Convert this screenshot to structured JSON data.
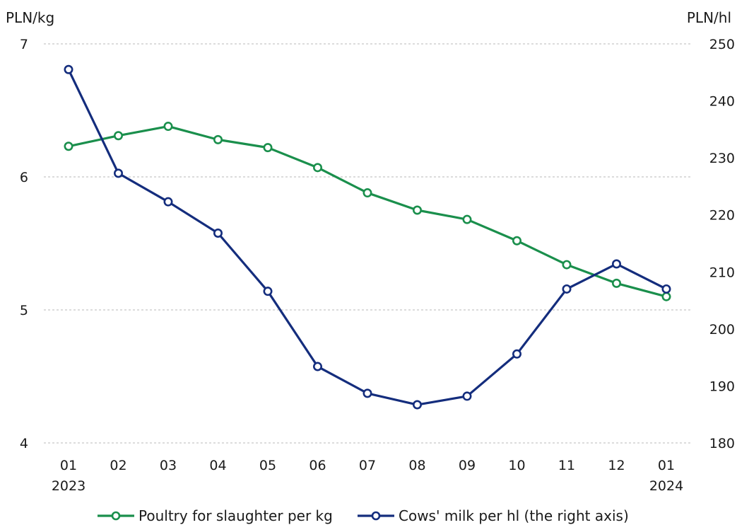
{
  "chart_data": {
    "type": "line",
    "categories": [
      "01",
      "02",
      "03",
      "04",
      "05",
      "06",
      "07",
      "08",
      "09",
      "10",
      "11",
      "12",
      "01"
    ],
    "year_labels": [
      {
        "index": 0,
        "label": "2023"
      },
      {
        "index": 12,
        "label": "2024"
      }
    ],
    "left_axis": {
      "unit": "PLN/kg",
      "ylim": [
        4,
        7
      ],
      "ticks": [
        4,
        5,
        6,
        7
      ]
    },
    "right_axis": {
      "unit": "PLN/hl",
      "ylim": [
        180,
        250
      ],
      "ticks": [
        180,
        190,
        200,
        210,
        220,
        230,
        240,
        250
      ]
    },
    "grid": true,
    "legend_position": "bottom",
    "series": [
      {
        "name": "Poultry for slaughter per kg",
        "axis": "left",
        "color": "#1a8f4c",
        "values": [
          6.23,
          6.31,
          6.38,
          6.28,
          6.22,
          6.07,
          5.88,
          5.75,
          5.68,
          5.52,
          5.34,
          5.2,
          5.1
        ]
      },
      {
        "name": "Cows' milk per hl (the right axis)",
        "axis": "right",
        "color": "#142d7d",
        "values": [
          245.5,
          227.3,
          222.3,
          216.8,
          206.6,
          193.4,
          188.7,
          186.7,
          188.2,
          195.6,
          207.0,
          211.4,
          207.0
        ]
      }
    ]
  }
}
